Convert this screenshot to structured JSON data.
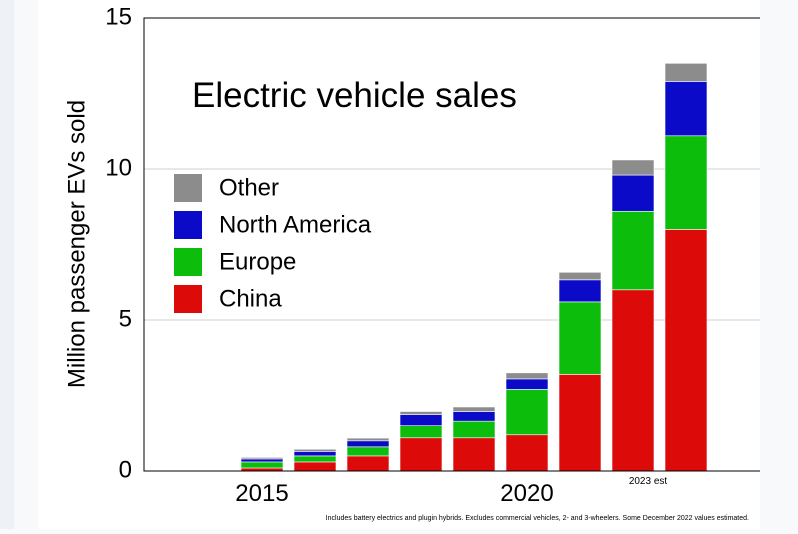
{
  "chart_data": {
    "type": "bar",
    "stacked": true,
    "title": "Electric vehicle sales",
    "ylabel": "Million passenger EVs sold",
    "xlabel": "",
    "ylim": [
      0,
      15
    ],
    "yticks": [
      "0",
      "5",
      "10",
      "15"
    ],
    "xticks": [
      {
        "label": "2015",
        "category": 2015
      },
      {
        "label": "2020",
        "category": 2020
      }
    ],
    "categories": [
      2014,
      2015,
      2016,
      2017,
      2018,
      2019,
      2020,
      2021,
      2022,
      2023
    ],
    "series": [
      {
        "name": "China",
        "color": "#dd0a0a",
        "values": [
          0,
          0.1,
          0.3,
          0.5,
          1.1,
          1.1,
          1.2,
          3.2,
          6.0,
          8.0
        ]
      },
      {
        "name": "Europe",
        "color": "#0cbd0c",
        "values": [
          0,
          0.2,
          0.2,
          0.3,
          0.4,
          0.55,
          1.5,
          2.4,
          2.6,
          3.1
        ]
      },
      {
        "name": "North America",
        "color": "#0a0ac8",
        "values": [
          0,
          0.1,
          0.15,
          0.2,
          0.37,
          0.32,
          0.35,
          0.73,
          1.2,
          1.8
        ]
      },
      {
        "name": "Other",
        "color": "#8c8c8c",
        "values": [
          0,
          0.05,
          0.07,
          0.09,
          0.1,
          0.15,
          0.2,
          0.25,
          0.5,
          0.6
        ]
      }
    ],
    "legend_order": [
      "Other",
      "North America",
      "Europe",
      "China"
    ],
    "legend_position": "left",
    "grid": true,
    "annotations": {
      "last_bar": "2023 est",
      "footnote": "Includes battery electrics and plugin hybrids. Excludes commercial vehicles, 2- and 3-wheelers. Some December 2022 values estimated."
    }
  }
}
